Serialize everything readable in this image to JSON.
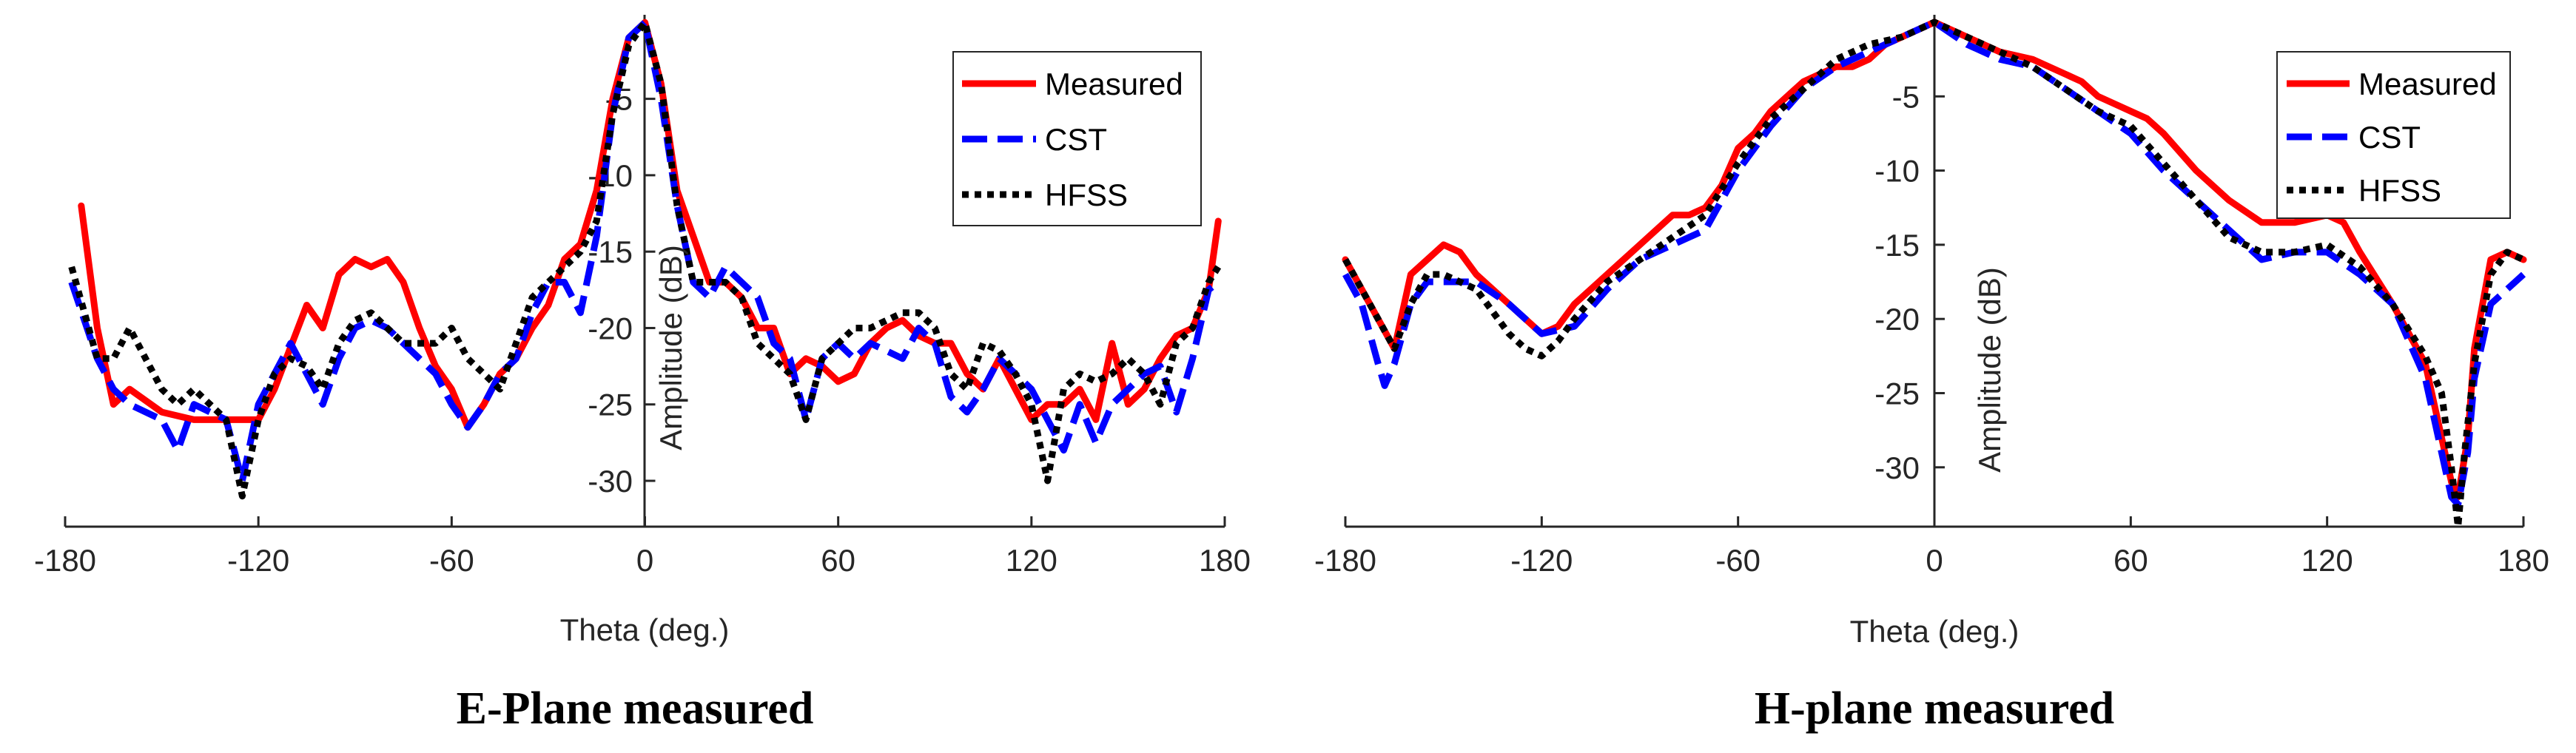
{
  "colors": {
    "measured": "#ff0000",
    "cst": "#0000ff",
    "hfss": "#000000",
    "axis": "#262626"
  },
  "chart_data": [
    {
      "type": "line",
      "caption": "E-Plane measured",
      "xlabel": "Theta (deg.)",
      "ylabel": "Amplitude (dB)",
      "xlim": [
        -180,
        180
      ],
      "ylim": [
        -33,
        0.5
      ],
      "xticks": [
        -180,
        -120,
        -60,
        0,
        60,
        120,
        180
      ],
      "yticks": [
        -5,
        -10,
        -15,
        -20,
        -25,
        -30
      ],
      "legend_position": "top-right",
      "series": [
        {
          "name": "Measured",
          "style": "solid",
          "x": [
            -175,
            -170,
            -165,
            -160,
            -150,
            -140,
            -130,
            -120,
            -115,
            -105,
            -100,
            -95,
            -90,
            -85,
            -80,
            -75,
            -70,
            -65,
            -60,
            -55,
            -50,
            -45,
            -40,
            -35,
            -30,
            -25,
            -20,
            -15,
            -10,
            -5,
            0,
            5,
            10,
            15,
            20,
            25,
            30,
            35,
            40,
            45,
            50,
            55,
            60,
            65,
            70,
            75,
            80,
            85,
            90,
            95,
            100,
            105,
            110,
            115,
            120,
            125,
            130,
            135,
            140,
            145,
            150,
            155,
            160,
            165,
            170,
            175,
            178
          ],
          "y": [
            -12,
            -20,
            -25,
            -24,
            -25.5,
            -26,
            -26,
            -26,
            -24,
            -18.5,
            -20,
            -16.5,
            -15.5,
            -16,
            -15.5,
            -17,
            -20,
            -22.5,
            -24,
            -26.5,
            -25,
            -23,
            -22,
            -20,
            -18.5,
            -15.5,
            -14.5,
            -11,
            -5,
            -1,
            0,
            -4,
            -11,
            -14,
            -17,
            -17,
            -18,
            -20,
            -20,
            -23,
            -22,
            -22.5,
            -23.5,
            -23,
            -21,
            -20,
            -19.5,
            -20.5,
            -21,
            -21,
            -23,
            -24,
            -22,
            -24,
            -26,
            -25,
            -25,
            -24,
            -26,
            -21,
            -25,
            -24,
            -22,
            -20.5,
            -20,
            -17.5,
            -13
          ]
        },
        {
          "name": "CST",
          "style": "dashed",
          "x": [
            -178,
            -170,
            -165,
            -160,
            -150,
            -145,
            -140,
            -130,
            -125,
            -120,
            -115,
            -110,
            -105,
            -100,
            -95,
            -90,
            -85,
            -80,
            -75,
            -70,
            -65,
            -60,
            -55,
            -50,
            -45,
            -40,
            -35,
            -30,
            -25,
            -20,
            -15,
            -10,
            -5,
            0,
            5,
            10,
            15,
            20,
            25,
            30,
            35,
            40,
            45,
            50,
            55,
            60,
            65,
            70,
            75,
            80,
            85,
            90,
            95,
            100,
            105,
            110,
            115,
            120,
            125,
            130,
            135,
            140,
            145,
            150,
            155,
            160,
            165,
            170,
            175,
            178
          ],
          "y": [
            -17,
            -22,
            -24,
            -25,
            -26,
            -28,
            -25,
            -26,
            -30,
            -25,
            -23,
            -21,
            -23,
            -25,
            -22,
            -20,
            -19.5,
            -20,
            -21,
            -22,
            -23,
            -25,
            -26.5,
            -25,
            -23,
            -22,
            -19,
            -17,
            -17,
            -19,
            -14,
            -6,
            -1,
            0,
            -5,
            -12,
            -17,
            -18,
            -16,
            -17,
            -18,
            -21,
            -22,
            -26,
            -22,
            -21,
            -22,
            -21,
            -21.5,
            -22,
            -20,
            -21,
            -24.5,
            -25.5,
            -24,
            -22,
            -23,
            -24,
            -26,
            -28,
            -25,
            -27.5,
            -25,
            -24,
            -23,
            -22.5,
            -25.5,
            -22,
            -17.5,
            -17
          ]
        },
        {
          "name": "HFSS",
          "style": "dotted",
          "x": [
            -178,
            -170,
            -165,
            -160,
            -155,
            -150,
            -145,
            -140,
            -130,
            -125,
            -120,
            -115,
            -110,
            -105,
            -100,
            -95,
            -90,
            -85,
            -80,
            -75,
            -70,
            -65,
            -60,
            -55,
            -50,
            -45,
            -40,
            -35,
            -30,
            -25,
            -20,
            -15,
            -10,
            -5,
            0,
            5,
            10,
            15,
            20,
            25,
            30,
            35,
            40,
            45,
            50,
            55,
            60,
            65,
            70,
            75,
            80,
            85,
            90,
            95,
            100,
            105,
            110,
            115,
            120,
            125,
            130,
            135,
            140,
            145,
            150,
            155,
            160,
            165,
            170,
            175,
            178
          ],
          "y": [
            -16,
            -22,
            -22,
            -20,
            -22,
            -24,
            -25,
            -24,
            -26,
            -31,
            -26,
            -23,
            -22,
            -22.5,
            -24,
            -21,
            -19.5,
            -19,
            -20,
            -21,
            -21,
            -21,
            -20,
            -22,
            -23,
            -24,
            -21,
            -18,
            -17,
            -16,
            -15,
            -13,
            -6,
            -1.5,
            0,
            -4,
            -12,
            -17,
            -17,
            -17,
            -18,
            -21,
            -22,
            -23,
            -26,
            -22,
            -21,
            -20,
            -20,
            -19.5,
            -19,
            -19,
            -20,
            -23,
            -24,
            -21,
            -21.5,
            -23,
            -25,
            -30,
            -24,
            -23,
            -23.5,
            -23,
            -22,
            -23,
            -25,
            -21,
            -20,
            -17,
            -16
          ]
        }
      ]
    },
    {
      "type": "line",
      "caption": "H-plane measured",
      "xlabel": "Theta (deg.)",
      "ylabel": "Amplitude (dB)",
      "xlim": [
        -180,
        180
      ],
      "ylim": [
        -34,
        0.5
      ],
      "xticks": [
        -180,
        -120,
        -60,
        0,
        60,
        120,
        180
      ],
      "yticks": [
        -5,
        -10,
        -15,
        -20,
        -25,
        -30
      ],
      "legend_position": "top-right",
      "series": [
        {
          "name": "Measured",
          "style": "solid",
          "x": [
            -180,
            -175,
            -170,
            -165,
            -160,
            -155,
            -150,
            -145,
            -140,
            -130,
            -120,
            -115,
            -110,
            -100,
            -90,
            -80,
            -75,
            -70,
            -65,
            -60,
            -55,
            -50,
            -45,
            -40,
            -35,
            -30,
            -25,
            -20,
            -15,
            -10,
            -5,
            0,
            10,
            20,
            30,
            40,
            45,
            50,
            55,
            60,
            65,
            70,
            80,
            90,
            100,
            110,
            120,
            125,
            130,
            140,
            150,
            155,
            158,
            160,
            163,
            165,
            170,
            175,
            180
          ],
          "y": [
            -16,
            -18,
            -20,
            -22,
            -17,
            -16,
            -15,
            -15.5,
            -17,
            -19,
            -21,
            -20.5,
            -19,
            -17,
            -15,
            -13,
            -13,
            -12.5,
            -11,
            -8.5,
            -7.5,
            -6,
            -5,
            -4,
            -3.5,
            -3,
            -3,
            -2.5,
            -1.5,
            -1,
            -0.5,
            0,
            -1,
            -2,
            -2.5,
            -3.5,
            -4,
            -5,
            -5.5,
            -6,
            -6.5,
            -7.5,
            -10,
            -12,
            -13.5,
            -13.5,
            -13,
            -13.5,
            -15.5,
            -19,
            -23,
            -28,
            -31,
            -32,
            -28,
            -22,
            -16,
            -15.5,
            -16
          ]
        },
        {
          "name": "CST",
          "style": "dashed",
          "x": [
            -180,
            -175,
            -170,
            -168,
            -165,
            -160,
            -155,
            -150,
            -140,
            -130,
            -120,
            -110,
            -100,
            -90,
            -80,
            -70,
            -60,
            -50,
            -40,
            -30,
            -20,
            -10,
            0,
            10,
            20,
            30,
            40,
            50,
            60,
            70,
            80,
            90,
            100,
            110,
            120,
            130,
            140,
            150,
            155,
            158,
            160,
            163,
            165,
            170,
            175,
            180
          ],
          "y": [
            -17,
            -19,
            -23,
            -24.5,
            -23,
            -19,
            -17.5,
            -17.5,
            -17.5,
            -19,
            -21,
            -20.5,
            -18,
            -16,
            -15,
            -14,
            -10,
            -7,
            -4.5,
            -3,
            -2,
            -1,
            0,
            -1.5,
            -2.5,
            -3,
            -4.5,
            -6,
            -7.5,
            -10,
            -12,
            -14,
            -16,
            -15.5,
            -15.5,
            -17,
            -19,
            -24,
            -29,
            -32,
            -32.5,
            -29,
            -24,
            -19,
            -18,
            -17
          ]
        },
        {
          "name": "HFSS",
          "style": "dotted",
          "x": [
            -180,
            -175,
            -170,
            -165,
            -160,
            -155,
            -150,
            -140,
            -130,
            -125,
            -120,
            -115,
            -110,
            -100,
            -90,
            -80,
            -70,
            -60,
            -50,
            -40,
            -30,
            -20,
            -10,
            0,
            10,
            20,
            30,
            40,
            50,
            60,
            70,
            80,
            90,
            100,
            110,
            120,
            130,
            140,
            150,
            155,
            158,
            160,
            162,
            165,
            170,
            175,
            180
          ],
          "y": [
            -16,
            -18,
            -20,
            -22,
            -19,
            -17,
            -17,
            -18,
            -21,
            -22,
            -22.5,
            -21.5,
            -20,
            -17.5,
            -16,
            -14.5,
            -13,
            -9.5,
            -6.5,
            -4.5,
            -2.5,
            -1.5,
            -1,
            0,
            -1,
            -2,
            -3,
            -4.5,
            -6,
            -7,
            -9.5,
            -12,
            -14.5,
            -15.5,
            -15.5,
            -15,
            -16.5,
            -19,
            -22.5,
            -25,
            -30,
            -34,
            -29,
            -23,
            -17,
            -15.5,
            -16
          ]
        }
      ]
    }
  ]
}
